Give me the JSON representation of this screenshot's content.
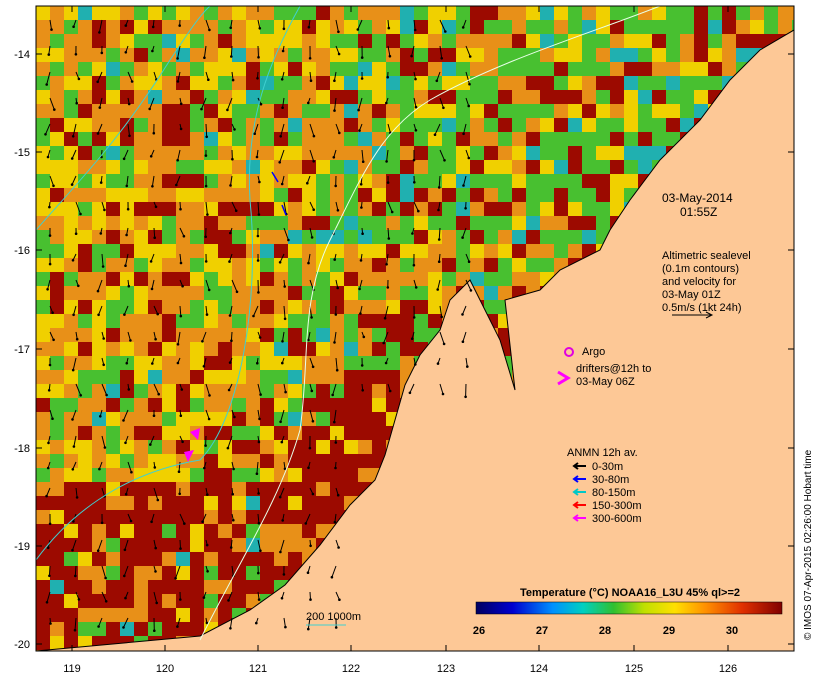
{
  "map": {
    "x_ticks": [
      "119",
      "120",
      "121",
      "122",
      "123",
      "124",
      "125",
      "126"
    ],
    "y_ticks": [
      "-14",
      "-15",
      "-16",
      "-17",
      "-18",
      "-19",
      "-20"
    ],
    "date_line1": "03-May-2014",
    "date_line2": "01:55Z",
    "altimetry_lines": [
      "Altimetric sealevel",
      "(0.1m contours)",
      "and velocity for",
      "03-May 01Z",
      "0.5m/s (1kt 24h)"
    ],
    "argo_label": "Argo",
    "drifters_line1": "drifters@12h to",
    "drifters_line2": "03-May 06Z",
    "anmn_title": "ANMN 12h av.",
    "anmn_legend": [
      {
        "label": "0-30m",
        "color": "#000000"
      },
      {
        "label": "30-80m",
        "color": "#0000ff"
      },
      {
        "label": "80-150m",
        "color": "#00c8c8"
      },
      {
        "label": "150-300m",
        "color": "#ff0000"
      },
      {
        "label": "300-600m",
        "color": "#ff00ff"
      }
    ],
    "contour_label": "200  1000m",
    "colorbar_title": "Temperature (°C) NOAA16_L3U 45% ql>=2",
    "colorbar_ticks": [
      "26",
      "27",
      "28",
      "29",
      "30"
    ],
    "credit": "© IMOS 07-Apr-2015 02:26:00 Hobart time",
    "colors": {
      "land": "#fdc896",
      "warm": "#9c0a00",
      "orange": "#e89018",
      "yellow": "#f0d000",
      "green": "#48c030",
      "cyan": "#20b0b0",
      "argo": "#e000e0",
      "contour": "#40d0d0"
    }
  }
}
